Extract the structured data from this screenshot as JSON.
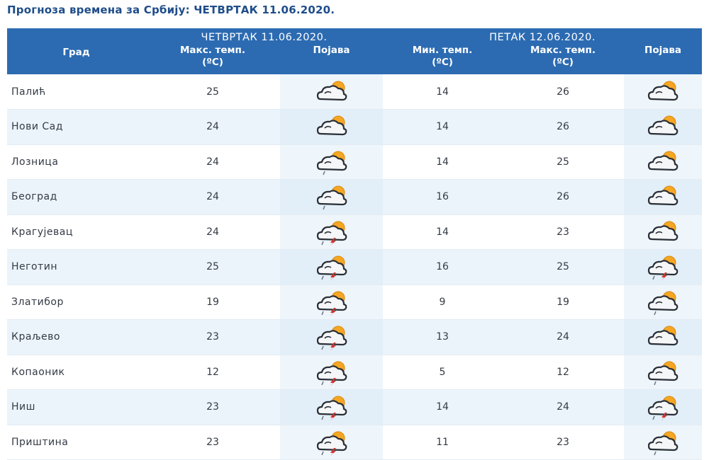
{
  "title": "Прогноза времена за Србију: ЧЕТВРТАК  11.06.2020.",
  "header": {
    "city_label": "Град",
    "day1_label": "ЧЕТВРТАК  11.06.2020.",
    "day2_label": "ПЕТАК  12.06.2020.",
    "max_temp_label": "Макс. темп.",
    "min_temp_label": "Мин. темп.",
    "unit_label": "(ºC)",
    "phenomenon_label": "Појава"
  },
  "rows": [
    {
      "city": "Палић",
      "d1_max": "25",
      "d1_icon": "partly-cloudy-icon",
      "d2_min": "14",
      "d2_max": "26",
      "d2_icon": "partly-cloudy-icon"
    },
    {
      "city": "Нови Сад",
      "d1_max": "24",
      "d1_icon": "partly-cloudy-icon",
      "d2_min": "14",
      "d2_max": "26",
      "d2_icon": "partly-cloudy-icon"
    },
    {
      "city": "Лозница",
      "d1_max": "24",
      "d1_icon": "partly-cloudy-rain-icon",
      "d2_min": "14",
      "d2_max": "25",
      "d2_icon": "partly-cloudy-icon"
    },
    {
      "city": "Београд",
      "d1_max": "24",
      "d1_icon": "partly-cloudy-rain-icon",
      "d2_min": "16",
      "d2_max": "26",
      "d2_icon": "partly-cloudy-icon"
    },
    {
      "city": "Крагујевац",
      "d1_max": "24",
      "d1_icon": "thunderstorm-icon",
      "d2_min": "14",
      "d2_max": "23",
      "d2_icon": "partly-cloudy-icon"
    },
    {
      "city": "Неготин",
      "d1_max": "25",
      "d1_icon": "thunderstorm-icon",
      "d2_min": "16",
      "d2_max": "25",
      "d2_icon": "thunderstorm-icon"
    },
    {
      "city": "Златибор",
      "d1_max": "19",
      "d1_icon": "thunderstorm-icon",
      "d2_min": "9",
      "d2_max": "19",
      "d2_icon": "partly-cloudy-rain-icon"
    },
    {
      "city": "Краљево",
      "d1_max": "23",
      "d1_icon": "thunderstorm-icon",
      "d2_min": "13",
      "d2_max": "24",
      "d2_icon": "partly-cloudy-icon"
    },
    {
      "city": "Копаоник",
      "d1_max": "12",
      "d1_icon": "thunderstorm-icon",
      "d2_min": "5",
      "d2_max": "12",
      "d2_icon": "partly-cloudy-rain-icon"
    },
    {
      "city": "Ниш",
      "d1_max": "23",
      "d1_icon": "thunderstorm-icon",
      "d2_min": "14",
      "d2_max": "24",
      "d2_icon": "thunderstorm-icon"
    },
    {
      "city": "Приштина",
      "d1_max": "23",
      "d1_icon": "thunderstorm-icon",
      "d2_min": "11",
      "d2_max": "23",
      "d2_icon": "partly-cloudy-rain-icon"
    }
  ],
  "colors": {
    "header_bg": "#2c6bb2",
    "title_text": "#1f4d8a",
    "row_alt_bg": "#ecf4fb",
    "sun": "#f5a623",
    "lightning": "#d0342c"
  }
}
